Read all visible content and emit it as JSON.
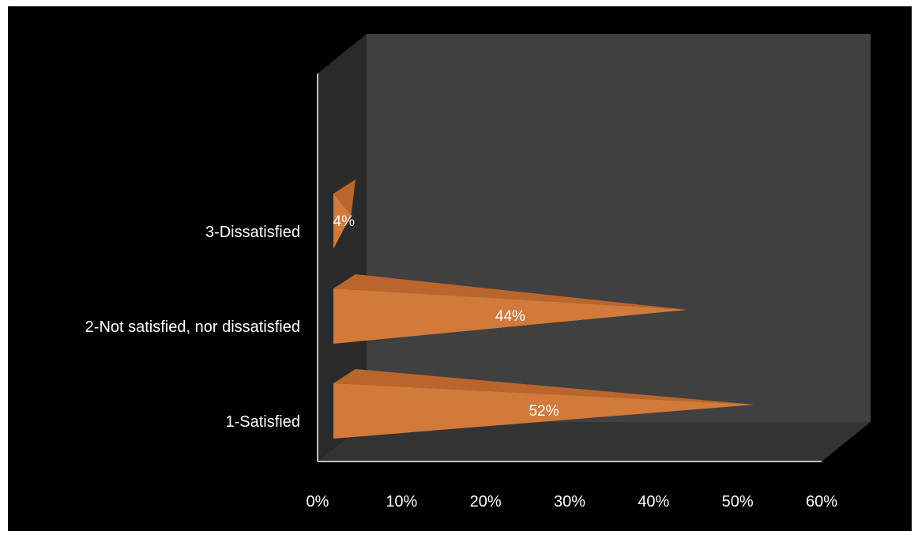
{
  "chart_data": {
    "type": "bar",
    "orientation": "horizontal",
    "style": "3d-pyramid",
    "categories": [
      "1-Satisfied",
      "2-Not satisfied, nor dissatisfied",
      "3-Dissatisfied"
    ],
    "values": [
      52,
      44,
      4
    ],
    "data_labels": [
      "52%",
      "44%",
      "4%"
    ],
    "x_ticks": [
      "0%",
      "10%",
      "20%",
      "30%",
      "40%",
      "50%",
      "60%"
    ],
    "xlim": [
      0,
      60
    ],
    "grid": false,
    "legend": "none",
    "colors": {
      "background": "#000000",
      "back_wall": "#404040",
      "side_wall": "#2a2a2a",
      "floor": "#333333",
      "axis_line": "#bfbfbf",
      "bar_front": "#d17a3a",
      "bar_top": "#b9652b",
      "bar_side": "#8a4a1e",
      "text": "#ffffff"
    }
  }
}
